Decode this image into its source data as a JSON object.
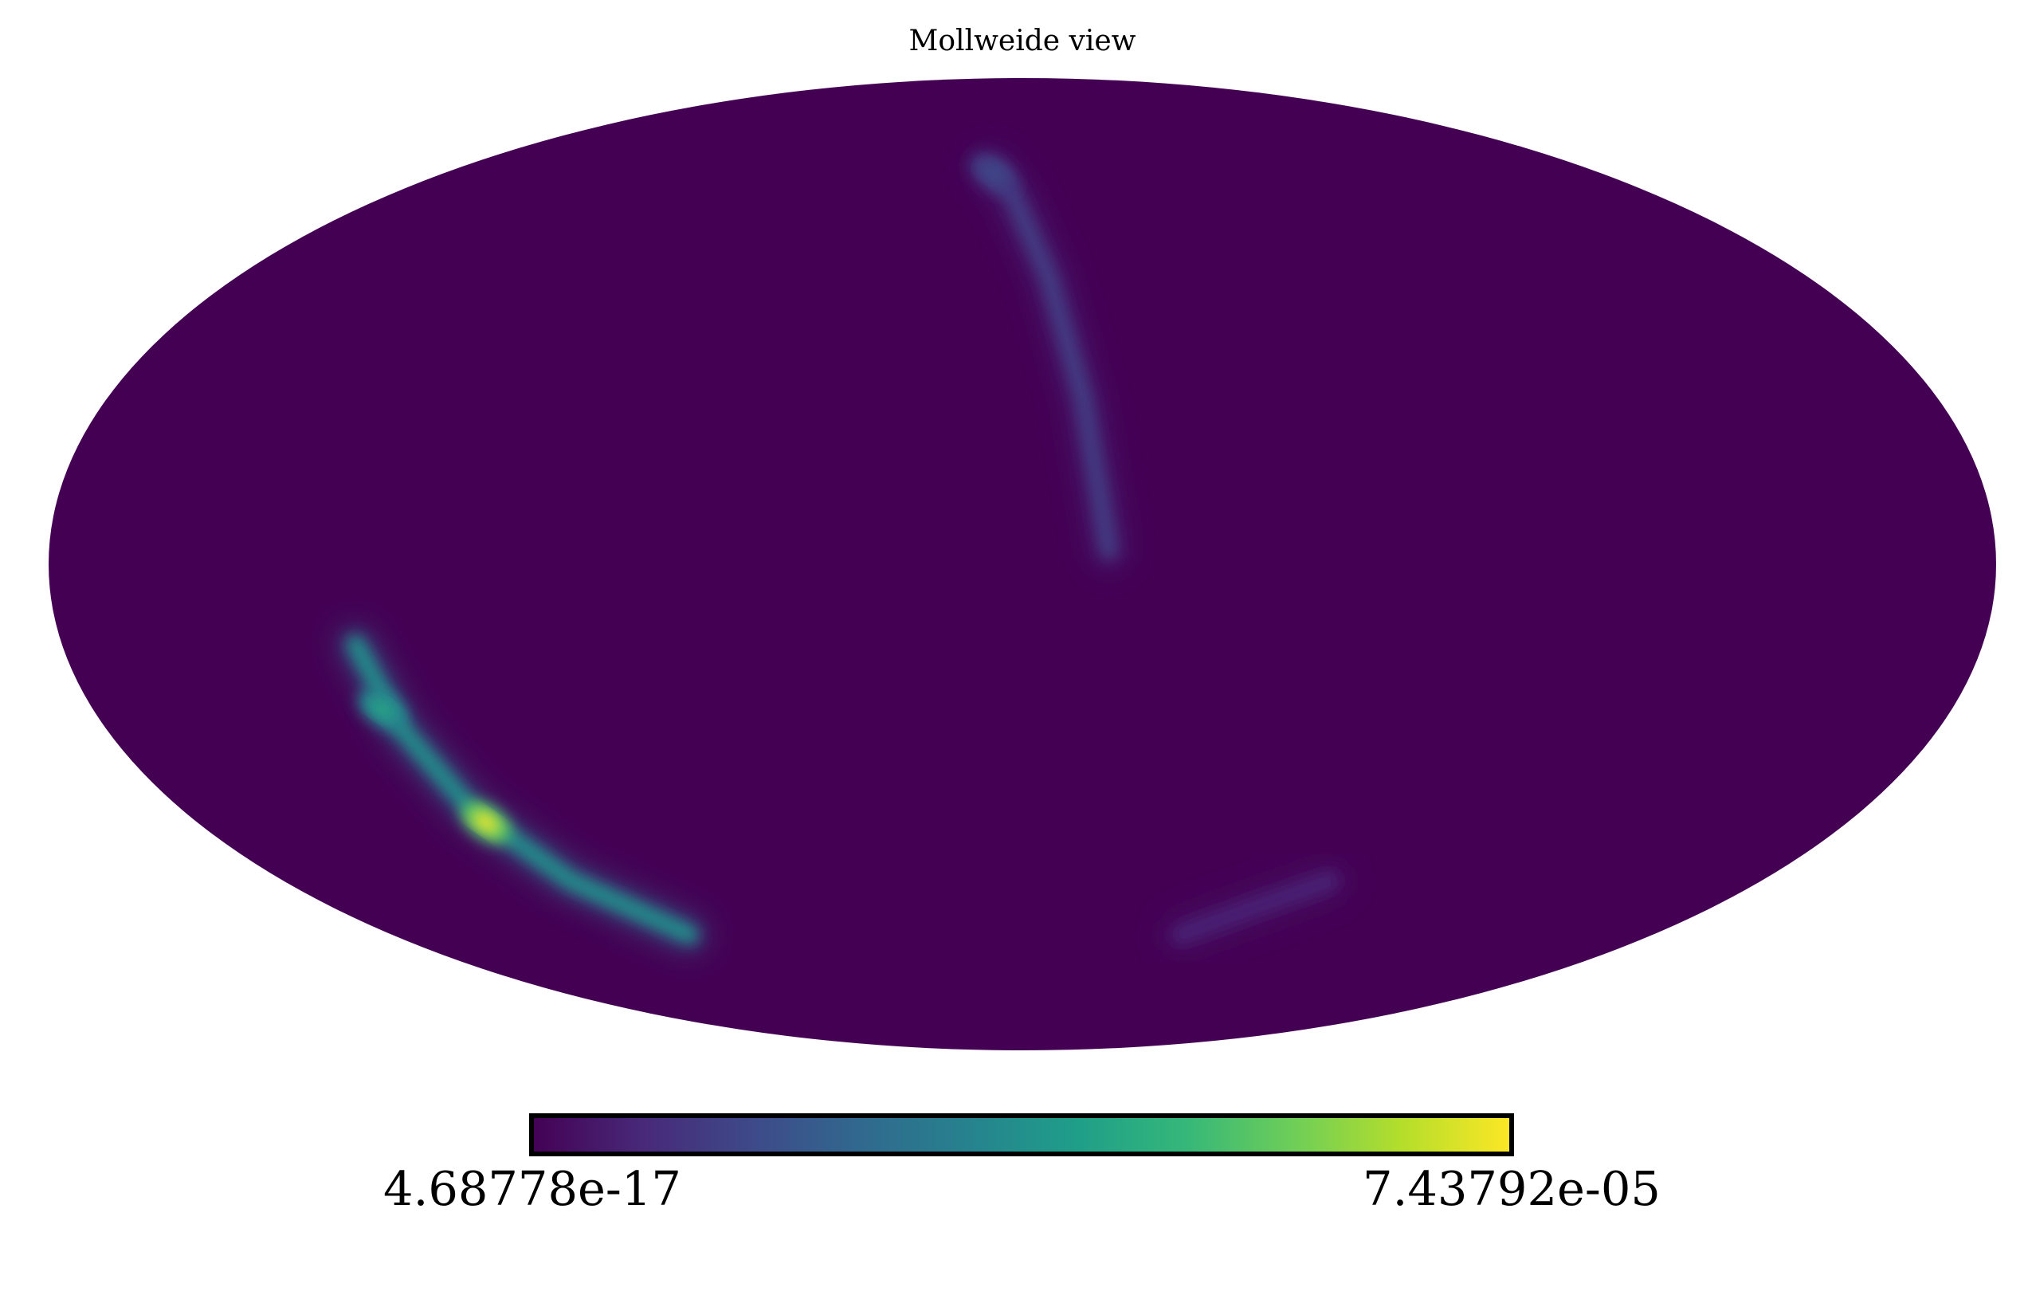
{
  "title": "Mollweide view",
  "projection": "mollweide",
  "colormap": {
    "name": "viridis",
    "min_label": "4.68778e-17",
    "max_label": "7.43792e-05",
    "min": 4.68778e-17,
    "max": 7.43792e-05,
    "orientation": "horizontal",
    "stops": [
      "#440154",
      "#482878",
      "#3e4989",
      "#31688e",
      "#26828e",
      "#1f9e89",
      "#35b779",
      "#6ece58",
      "#b5de2b",
      "#fde725"
    ]
  },
  "background_color": "#440154",
  "features": [
    {
      "type": "arc",
      "description": "faint arc",
      "points": [
        [
          -10,
          65
        ],
        [
          -3,
          60
        ],
        [
          6,
          45
        ],
        [
          12,
          25
        ],
        [
          16,
          2
        ]
      ],
      "level": 0.18
    },
    {
      "type": "arc",
      "description": "bright arc",
      "points": [
        [
          -125,
          -12
        ],
        [
          -122,
          -25
        ],
        [
          -118,
          -38
        ],
        [
          -110,
          -50
        ],
        [
          -95,
          -60
        ]
      ],
      "level": 0.5
    },
    {
      "type": "spot",
      "description": "peak",
      "lon": -117,
      "lat": -40,
      "level": 1.0
    },
    {
      "type": "spot",
      "description": "secondary",
      "lon": -124,
      "lat": -22,
      "level": 0.6
    },
    {
      "type": "spot",
      "description": "top blob",
      "lon": -9,
      "lat": 64,
      "level": 0.22
    },
    {
      "type": "arc",
      "description": "faint lower right",
      "points": [
        [
          45,
          -60
        ],
        [
          60,
          -55
        ],
        [
          75,
          -50
        ]
      ],
      "level": 0.1
    }
  ]
}
